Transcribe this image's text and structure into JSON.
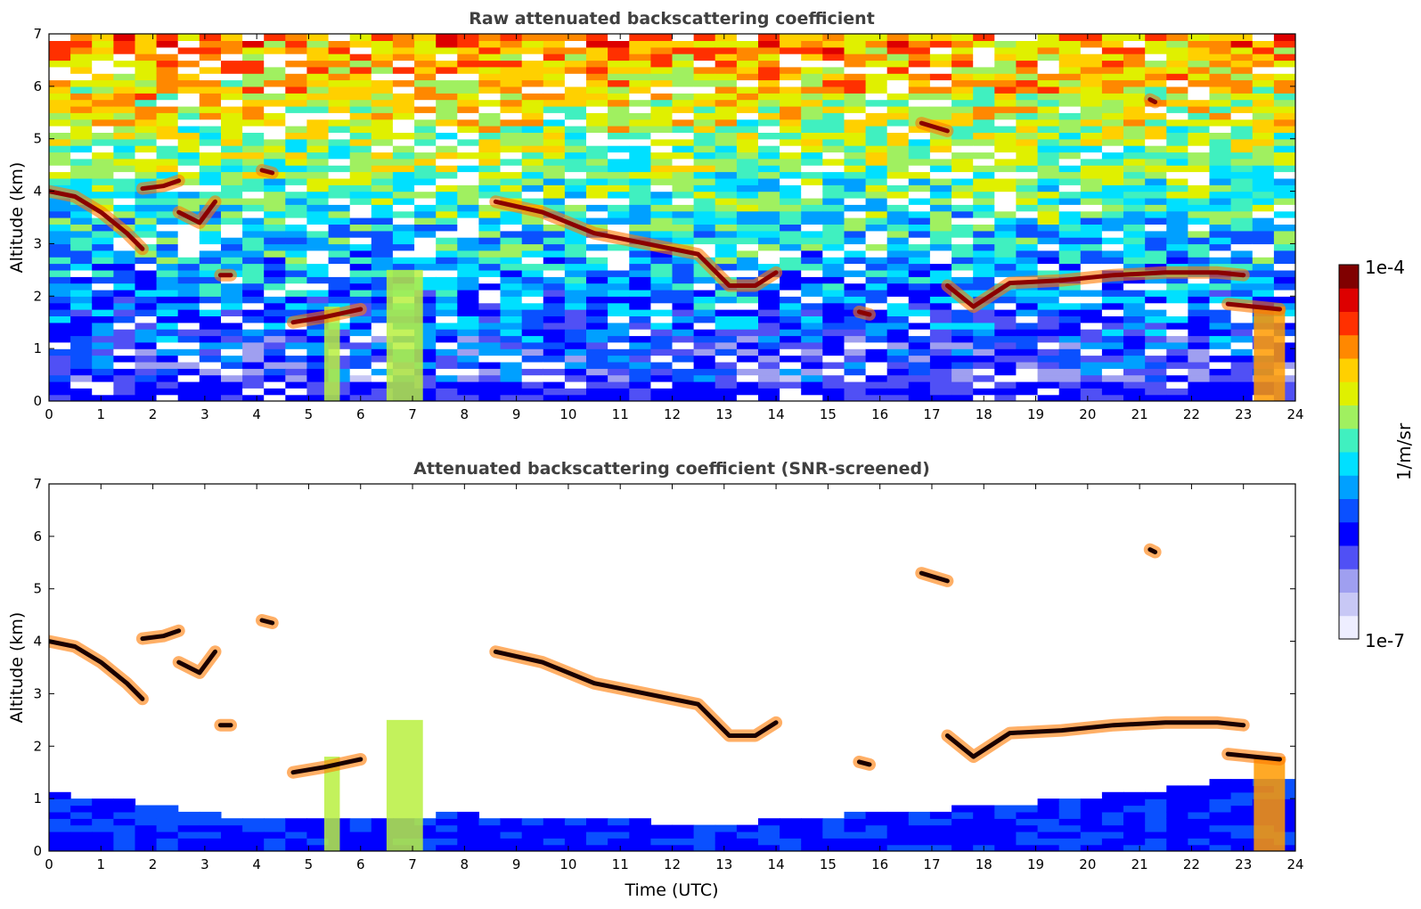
{
  "chart_data": [
    {
      "type": "heatmap",
      "title": "Raw attenuated backscattering coefficient",
      "ylabel": "Altitude (km)",
      "xlabel": "",
      "xlim": [
        0,
        24
      ],
      "ylim": [
        0,
        7
      ],
      "xticks": [
        "0",
        "1",
        "2",
        "3",
        "4",
        "5",
        "6",
        "7",
        "8",
        "9",
        "10",
        "11",
        "12",
        "13",
        "14",
        "15",
        "16",
        "17",
        "18",
        "19",
        "20",
        "21",
        "22",
        "23",
        "24"
      ],
      "yticks": [
        "0",
        "1",
        "2",
        "3",
        "4",
        "5",
        "6",
        "7"
      ],
      "screened": false,
      "layers": [
        {
          "x": [
            0,
            0.5,
            1,
            1.5,
            1.8
          ],
          "y": [
            4.0,
            3.9,
            3.6,
            3.2,
            2.9
          ]
        },
        {
          "x": [
            1.8,
            2.2,
            2.5
          ],
          "y": [
            4.05,
            4.1,
            4.2
          ]
        },
        {
          "x": [
            2.5,
            2.9,
            3.2
          ],
          "y": [
            3.6,
            3.4,
            3.8
          ]
        },
        {
          "x": [
            3.3,
            3.5
          ],
          "y": [
            2.4,
            2.4
          ]
        },
        {
          "x": [
            4.1,
            4.3
          ],
          "y": [
            4.4,
            4.35
          ]
        },
        {
          "x": [
            4.7,
            5.3,
            6.0
          ],
          "y": [
            1.5,
            1.6,
            1.75
          ]
        },
        {
          "x": [
            8.6,
            9.5,
            10.5,
            11.5,
            12.5,
            13.1,
            13.6,
            14.0
          ],
          "y": [
            3.8,
            3.6,
            3.2,
            3.0,
            2.8,
            2.2,
            2.2,
            2.45
          ]
        },
        {
          "x": [
            15.6,
            15.8
          ],
          "y": [
            1.7,
            1.65
          ]
        },
        {
          "x": [
            16.8,
            17.3
          ],
          "y": [
            5.3,
            5.15
          ]
        },
        {
          "x": [
            17.3,
            17.8,
            18.5,
            19.5,
            20.5,
            21.5,
            22.5,
            23.0
          ],
          "y": [
            2.2,
            1.8,
            2.25,
            2.3,
            2.4,
            2.45,
            2.45,
            2.4
          ]
        },
        {
          "x": [
            21.2,
            21.3
          ],
          "y": [
            5.75,
            5.7
          ]
        },
        {
          "x": [
            22.7,
            23.2,
            23.7
          ],
          "y": [
            1.85,
            1.8,
            1.75
          ]
        }
      ],
      "precipitation": [
        {
          "x": [
            5.3,
            5.6
          ],
          "y": [
            0,
            1.8
          ]
        },
        {
          "x": [
            6.5,
            7.2
          ],
          "y": [
            0,
            2.5
          ]
        },
        {
          "x": [
            23.2,
            23.8
          ],
          "y": [
            0,
            1.8
          ]
        }
      ]
    },
    {
      "type": "heatmap",
      "title": "Attenuated backscattering coefficient (SNR-screened)",
      "ylabel": "Altitude (km)",
      "xlabel": "Time (UTC)",
      "xlim": [
        0,
        24
      ],
      "ylim": [
        0,
        7
      ],
      "xticks": [
        "0",
        "1",
        "2",
        "3",
        "4",
        "5",
        "6",
        "7",
        "8",
        "9",
        "10",
        "11",
        "12",
        "13",
        "14",
        "15",
        "16",
        "17",
        "18",
        "19",
        "20",
        "21",
        "22",
        "23",
        "24"
      ],
      "yticks": [
        "0",
        "1",
        "2",
        "3",
        "4",
        "5",
        "6",
        "7"
      ],
      "screened": true,
      "boundary_layer_top_km": [
        {
          "x": 0,
          "y": 1.1
        },
        {
          "x": 2,
          "y": 0.9
        },
        {
          "x": 4,
          "y": 0.6
        },
        {
          "x": 8,
          "y": 0.7
        },
        {
          "x": 13,
          "y": 0.5
        },
        {
          "x": 17,
          "y": 0.8
        },
        {
          "x": 20,
          "y": 1.0
        },
        {
          "x": 23,
          "y": 1.4
        }
      ]
    }
  ],
  "colorbar": {
    "label": "1/m/sr",
    "min_label": "1e-7",
    "max_label": "1e-4",
    "colors": [
      "#eeeeff",
      "#c8c8f5",
      "#9f9ff0",
      "#5050f5",
      "#0000ff",
      "#0a50ff",
      "#00a0ff",
      "#00e0ff",
      "#40f0c0",
      "#a0f060",
      "#e0f000",
      "#ffd000",
      "#ff8800",
      "#ff3000",
      "#dd0000",
      "#800000"
    ]
  }
}
